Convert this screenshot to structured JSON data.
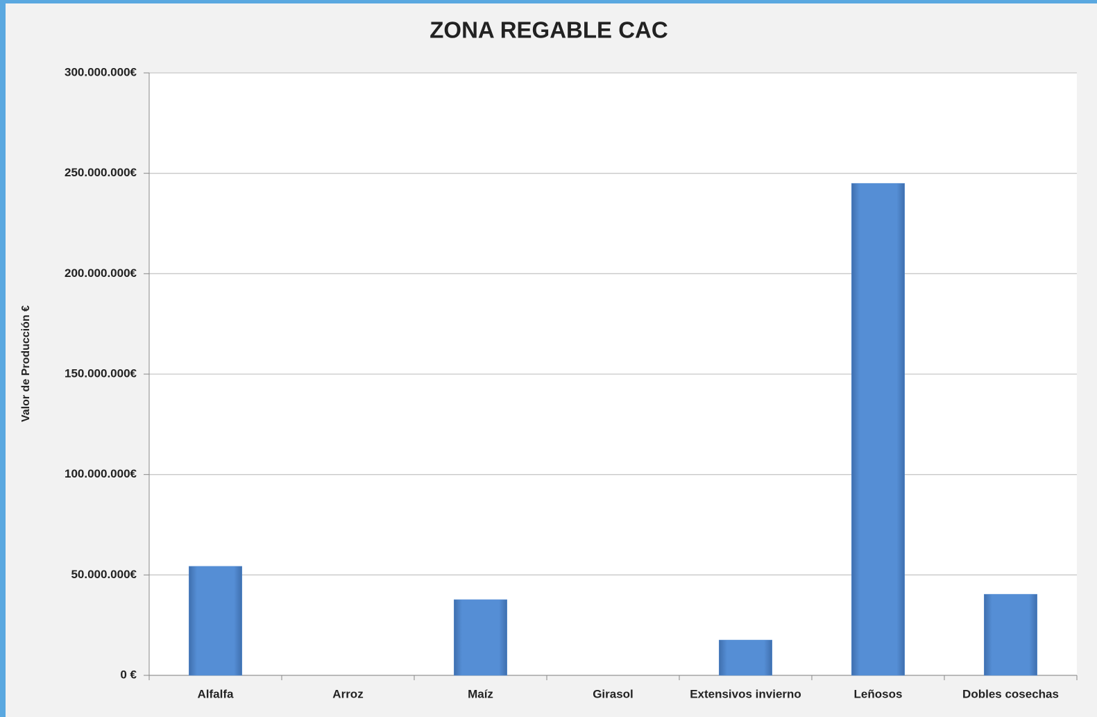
{
  "chart_data": {
    "type": "bar",
    "title": "ZONA REGABLE CAC",
    "y_label": "Valor de Producción €",
    "categories": [
      "Alfalfa",
      "Arroz",
      "Maíz",
      "Girasol",
      "Extensivos invierno",
      "Leñosos",
      "Dobles cosechas"
    ],
    "values": [
      54300000,
      0,
      37700000,
      0,
      17600000,
      245000000,
      40400000
    ],
    "color": "#558ed5",
    "ylim": [
      0,
      300000000
    ],
    "yticks": [
      {
        "value": 0,
        "label": "0 €"
      },
      {
        "value": 50000000,
        "label": "50.000.000€"
      },
      {
        "value": 100000000,
        "label": "100.000.000€"
      },
      {
        "value": 150000000,
        "label": "150.000.000€"
      },
      {
        "value": 200000000,
        "label": "200.000.000€"
      },
      {
        "value": 250000000,
        "label": "250.000.000€"
      },
      {
        "value": 300000000,
        "label": "300.000.000€"
      }
    ],
    "grid": true
  }
}
